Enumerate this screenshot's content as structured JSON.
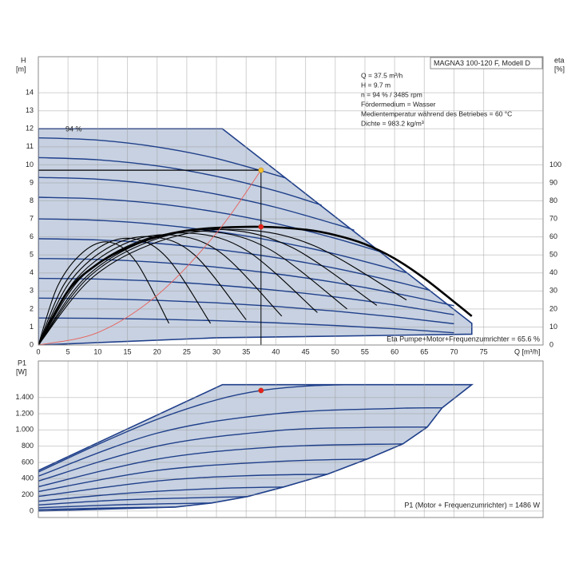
{
  "chart_data": [
    {
      "type": "line",
      "title": "MAGNA3 100-120 F, Modell D",
      "y_label": "H",
      "y_unit": "[m]",
      "y2_label": "eta",
      "y2_unit": "[%]",
      "x_label": "Q [m³/h]",
      "annotations": [
        "Q = 37.5 m³/h",
        "H = 9.7 m",
        "n = 94 % / 3485 rpm",
        "Fördermedium = Wasser",
        "Medientemperatur während des Betriebes = 60 °C",
        "Dichte = 983.2 kg/m³"
      ],
      "curve_label": "94 %",
      "footer": "Eta Pumpe+Motor+Frequenzumrichter = 65.6 %",
      "xlim": [
        0,
        85
      ],
      "ylim": [
        0,
        16
      ],
      "y2lim": [
        0,
        160
      ],
      "xticks": [
        0,
        5,
        10,
        15,
        20,
        25,
        30,
        35,
        40,
        45,
        50,
        55,
        60,
        65,
        70,
        75
      ],
      "yticks": [
        0,
        1,
        2,
        3,
        4,
        5,
        6,
        7,
        8,
        9,
        10,
        11,
        12,
        13,
        14
      ],
      "y2ticks": [
        0,
        10,
        20,
        30,
        40,
        50,
        60,
        70,
        80,
        90,
        100
      ],
      "grid": true,
      "xtick_labels": true,
      "area": {
        "color": "#c7d1e1",
        "x": [
          0,
          31,
          73,
          73,
          30,
          0
        ],
        "values": [
          12,
          12,
          1.2,
          0.6,
          0.4,
          0
        ]
      },
      "series": [
        {
          "color": "#1f3f8a",
          "x": [
            0,
            10,
            20,
            30,
            41.7
          ],
          "values": [
            11.5,
            11.37,
            10.99,
            10.35,
            9.27
          ]
        },
        {
          "color": "#1f3f8a",
          "x": [
            0,
            10,
            20,
            30,
            40,
            47.7
          ],
          "values": [
            10.4,
            10.28,
            9.94,
            9.36,
            8.55,
            7.76
          ]
        },
        {
          "color": "#1f3f8a",
          "x": [
            0,
            10,
            20,
            30,
            40,
            50,
            53.2
          ],
          "values": [
            9.3,
            9.2,
            8.89,
            8.37,
            7.64,
            6.71,
            6.37
          ]
        },
        {
          "color": "#1f3f8a",
          "x": [
            0,
            10,
            20,
            30,
            40,
            50,
            58.3
          ],
          "values": [
            8.2,
            8.11,
            7.84,
            7.38,
            6.74,
            5.92,
            5.1
          ]
        },
        {
          "color": "#1f3f8a",
          "x": [
            0,
            10,
            20,
            30,
            40,
            50,
            62
          ],
          "values": [
            7,
            6.92,
            6.69,
            6.3,
            5.75,
            5.05,
            4.01
          ]
        },
        {
          "color": "#1f3f8a",
          "x": [
            0,
            10,
            20,
            30,
            40,
            50,
            60,
            66
          ],
          "values": [
            5.9,
            5.83,
            5.64,
            5.31,
            4.85,
            4.26,
            3.53,
            3.03
          ]
        },
        {
          "color": "#1f3f8a",
          "x": [
            0,
            10,
            20,
            30,
            40,
            50,
            60,
            70
          ],
          "values": [
            4.8,
            4.75,
            4.59,
            4.32,
            3.95,
            3.47,
            2.88,
            2.18
          ]
        },
        {
          "color": "#1f3f8a",
          "x": [
            0,
            10,
            20,
            30,
            40,
            50,
            60,
            70
          ],
          "values": [
            3.7,
            3.66,
            3.54,
            3.33,
            3.04,
            2.67,
            2.22,
            1.68
          ]
        },
        {
          "color": "#1f3f8a",
          "x": [
            0,
            10,
            20,
            30,
            40,
            50,
            60,
            70
          ],
          "values": [
            2.6,
            2.57,
            2.48,
            2.34,
            2.14,
            1.88,
            1.56,
            1.18
          ]
        },
        {
          "color": "#1f3f8a",
          "x": [
            0,
            10,
            20,
            30,
            40,
            50,
            60,
            70
          ],
          "values": [
            1.5,
            1.48,
            1.43,
            1.35,
            1.23,
            1.08,
            0.9,
            0.68
          ]
        },
        {
          "color": "#000000",
          "axis": "y2",
          "x": [
            0,
            5,
            10,
            15,
            20,
            25,
            30,
            37.5,
            45,
            50,
            55,
            60,
            65,
            70,
            73
          ],
          "values": [
            0,
            30,
            45,
            54,
            60,
            63.5,
            65,
            65.6,
            64,
            61,
            56,
            48,
            37,
            24,
            16
          ]
        },
        {
          "color": "#000000",
          "axis": "y2",
          "x": [
            0,
            3.3,
            7.7,
            12.1,
            16.5,
            22
          ],
          "values": [
            0,
            33,
            52,
            57,
            46,
            12
          ]
        },
        {
          "color": "#000000",
          "axis": "y2",
          "x": [
            0,
            4.4,
            10.2,
            16,
            21.8,
            29
          ],
          "values": [
            0,
            34,
            54,
            59,
            48,
            12
          ]
        },
        {
          "color": "#000000",
          "axis": "y2",
          "x": [
            0,
            5.3,
            12.3,
            19.3,
            26.3,
            35
          ],
          "values": [
            0,
            35,
            55,
            60,
            50,
            14
          ]
        },
        {
          "color": "#000000",
          "axis": "y2",
          "x": [
            0,
            6.2,
            14.4,
            22.6,
            30.8,
            41
          ],
          "values": [
            0,
            36,
            56,
            61,
            51,
            16
          ]
        },
        {
          "color": "#000000",
          "axis": "y2",
          "x": [
            0,
            7.1,
            16.5,
            25.9,
            35.3,
            47
          ],
          "values": [
            0,
            37,
            57,
            62,
            52,
            18
          ]
        },
        {
          "color": "#000000",
          "axis": "y2",
          "x": [
            0,
            7.8,
            18.2,
            28.6,
            39,
            52
          ],
          "values": [
            0,
            37,
            58,
            63,
            53,
            20
          ]
        },
        {
          "color": "#000000",
          "axis": "y2",
          "x": [
            0,
            8.6,
            20,
            31.4,
            42.8,
            57
          ],
          "values": [
            0,
            38,
            59,
            64,
            54,
            22
          ]
        },
        {
          "color": "#000000",
          "axis": "y2",
          "x": [
            0,
            9.3,
            21.7,
            34.1,
            46.5,
            62
          ],
          "values": [
            0,
            38,
            59,
            64,
            55,
            25
          ]
        },
        {
          "color": "#e8605a",
          "x": [
            0,
            10,
            20,
            30,
            37.5
          ],
          "values": [
            0,
            0.69,
            2.76,
            6.21,
            9.7
          ]
        }
      ],
      "points": [
        {
          "x": 37.5,
          "value": 9.7,
          "color": "#f2c230"
        },
        {
          "x": 37.5,
          "value": 65.6,
          "color": "#e52020",
          "axis": "y2"
        }
      ]
    },
    {
      "type": "line",
      "y_label": "P1",
      "y_unit": "[W]",
      "footer": "P1 (Motor + Frequenzumrichter) = 1486 W",
      "xlim": [
        0,
        85
      ],
      "ylim": [
        -80,
        1850
      ],
      "xticks": [
        0,
        5,
        10,
        15,
        20,
        25,
        30,
        35,
        40,
        45,
        50,
        55,
        60,
        65,
        70,
        75
      ],
      "yticks": [
        0,
        200,
        400,
        600,
        800,
        {
          "value": 1000,
          "label": "1.000"
        },
        {
          "value": 1200,
          "label": "1.200"
        },
        {
          "value": 1400,
          "label": "1.400"
        }
      ],
      "grid": true,
      "xtick_labels": false,
      "area": {
        "color": "#c7d1e1",
        "x": [
          0,
          31,
          73,
          68,
          65.5,
          61.4,
          55.4,
          48.7,
          41.3,
          35.2,
          29.2,
          23.1,
          0
        ],
        "values": [
          500,
          1558,
          1558,
          1272,
          1035,
          828,
          641,
          454,
          296,
          178,
          99,
          49,
          0
        ]
      },
      "series": [
        {
          "color": "#1f3f8a",
          "x": [
            0,
            10,
            20,
            30,
            37.5,
            45,
            52
          ],
          "values": [
            480,
            820,
            1130,
            1370,
            1486,
            1540,
            1558
          ]
        },
        {
          "color": "#1f3f8a",
          "x": [
            0,
            20,
            40,
            60,
            68
          ],
          "values": [
            430,
            960,
            1200,
            1265,
            1272
          ]
        },
        {
          "color": "#1f3f8a",
          "x": [
            0,
            20,
            40,
            55,
            65.5
          ],
          "values": [
            370,
            800,
            990,
            1030,
            1035
          ]
        },
        {
          "color": "#1f3f8a",
          "x": [
            0,
            20,
            40,
            61.4
          ],
          "values": [
            300,
            640,
            790,
            828
          ]
        },
        {
          "color": "#1f3f8a",
          "x": [
            0,
            20,
            40,
            55.4
          ],
          "values": [
            240,
            500,
            610,
            641
          ]
        },
        {
          "color": "#1f3f8a",
          "x": [
            0,
            20,
            35,
            48.7
          ],
          "values": [
            180,
            370,
            435,
            454
          ]
        },
        {
          "color": "#1f3f8a",
          "x": [
            0,
            15,
            30,
            41.3
          ],
          "values": [
            120,
            220,
            278,
            296
          ]
        },
        {
          "color": "#1f3f8a",
          "x": [
            0,
            15,
            35.2
          ],
          "values": [
            75,
            140,
            178
          ]
        },
        {
          "color": "#1f3f8a",
          "x": [
            0,
            15,
            29.2
          ],
          "values": [
            40,
            80,
            99
          ]
        },
        {
          "color": "#1f3f8a",
          "x": [
            0,
            12,
            23.1
          ],
          "values": [
            15,
            38,
            49
          ]
        }
      ],
      "points": [
        {
          "x": 37.5,
          "value": 1486,
          "color": "#e52020"
        }
      ]
    }
  ]
}
